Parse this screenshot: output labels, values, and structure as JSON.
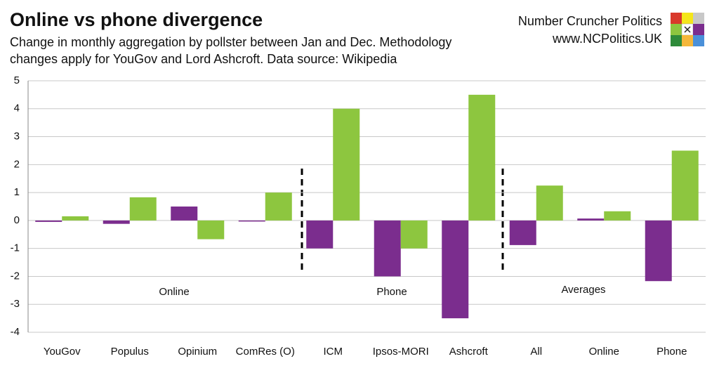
{
  "chart_data": {
    "type": "bar",
    "title": "Online vs phone divergence",
    "subtitle": [
      "Change in monthly aggregation by pollster between Jan and Dec. Methodology",
      "changes apply for YouGov and Lord Ashcroft. Data source: Wikipedia"
    ],
    "brand": [
      "Number Cruncher Politics",
      "www.NCPolitics.UK"
    ],
    "categories": [
      "YouGov",
      "Populus",
      "Opinium",
      "ComRes (O)",
      "ICM",
      "Ipsos-MORI",
      "Ashcroft",
      "All",
      "Online",
      "Phone"
    ],
    "series": [
      {
        "color": "#7b2d8e",
        "values": [
          -0.05,
          -0.12,
          0.5,
          0,
          -1.0,
          -2.0,
          -3.5,
          -0.88,
          0.07,
          -2.17
        ]
      },
      {
        "color": "#8dc63f",
        "values": [
          0.15,
          0.83,
          -0.67,
          1.0,
          4.0,
          -1.0,
          4.5,
          1.25,
          0.33,
          2.5
        ]
      }
    ],
    "annotations": [
      "Online",
      "Phone",
      "Averages"
    ],
    "ylim": [
      -4,
      5
    ],
    "yticks": [
      -4,
      -3,
      -2,
      -1,
      0,
      1,
      2,
      3,
      4,
      5
    ],
    "grid": true
  }
}
